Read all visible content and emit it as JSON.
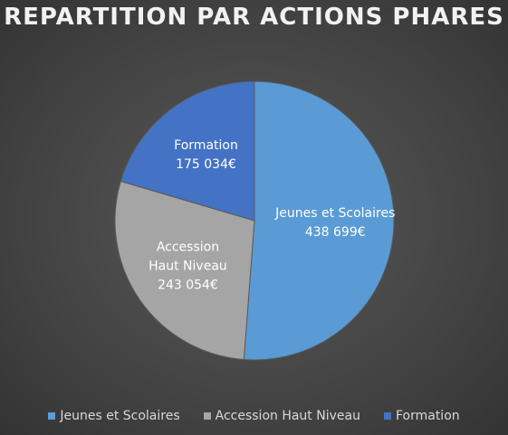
{
  "chart_data": {
    "type": "pie",
    "title": "REPARTITION PAR ACTIONS PHARES",
    "categories": [
      "Jeunes et Scolaires",
      "Accession Haut Niveau",
      "Formation"
    ],
    "values": [
      438699,
      243054,
      175034
    ],
    "value_labels": [
      "438 699€",
      "243 054€",
      "175 034€"
    ],
    "colors": [
      "#5b9bd5",
      "#a5a5a5",
      "#4472c4"
    ],
    "legend": "bottom"
  }
}
